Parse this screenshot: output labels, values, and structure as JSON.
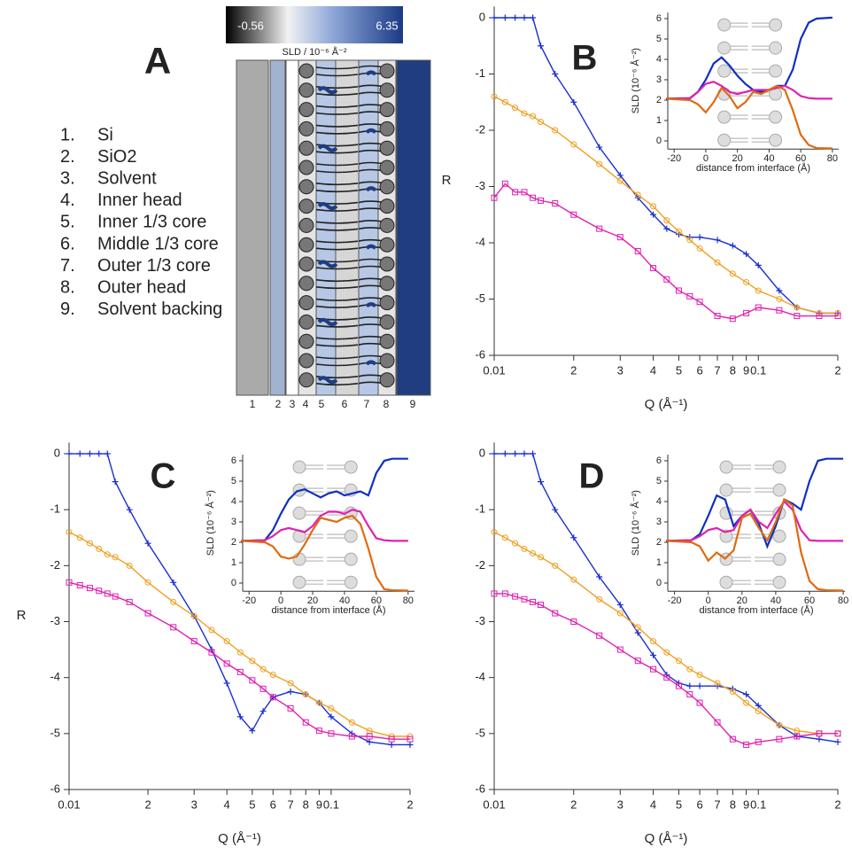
{
  "panel_a": {
    "label": "A",
    "items": [
      {
        "number": "1.",
        "text": "Si"
      },
      {
        "number": "2.",
        "text": "SiO2"
      },
      {
        "number": "3.",
        "text": "Solvent"
      },
      {
        "number": "4.",
        "text": "Inner head"
      },
      {
        "number": "5.",
        "text": "Inner 1/3 core"
      },
      {
        "number": "6.",
        "text": "Middle 1/3 core"
      },
      {
        "number": "7.",
        "text": "Outer 1/3 core"
      },
      {
        "number": "8.",
        "text": "Outer head"
      },
      {
        "number": "9.",
        "text": "Solvent backing"
      }
    ],
    "colorbar": {
      "min": -0.56,
      "max": 6.35,
      "label": "SLD / 10⁻⁶ Å⁻²"
    },
    "layer_numbers": [
      1,
      2,
      3,
      4,
      5,
      6,
      7,
      8,
      9
    ]
  },
  "chart_data": [
    {
      "type": "line",
      "label": "B",
      "xscale": "log",
      "xlabel": "Q (Å⁻¹)",
      "ylabel": "R",
      "xlim": [
        0.01,
        0.2
      ],
      "ylim": [
        -6,
        0.2
      ],
      "xticks": [
        {
          "value": 0.01,
          "label": "0.01"
        },
        {
          "value": 0.02,
          "label": "2"
        },
        {
          "value": 0.03,
          "label": "3"
        },
        {
          "value": 0.04,
          "label": "4"
        },
        {
          "value": 0.05,
          "label": "5"
        },
        {
          "value": 0.06,
          "label": "6"
        },
        {
          "value": 0.07,
          "label": "7"
        },
        {
          "value": 0.08,
          "label": "8"
        },
        {
          "value": 0.09,
          "label": "9"
        },
        0.1,
        {
          "value": 0.2,
          "label": "2"
        }
      ],
      "yticks": [
        -6,
        -5,
        -4,
        -3,
        -2,
        -1,
        0
      ],
      "x": [
        0.01,
        0.011,
        0.012,
        0.013,
        0.014,
        0.015,
        0.017,
        0.02,
        0.025,
        0.03,
        0.035,
        0.04,
        0.045,
        0.05,
        0.055,
        0.06,
        0.07,
        0.08,
        0.09,
        0.1,
        0.12,
        0.14,
        0.17,
        0.2
      ],
      "series": [
        {
          "color": "#1a2fd0",
          "marker": "plus",
          "values": [
            0,
            0,
            0,
            0,
            0,
            -0.5,
            -1.0,
            -1.5,
            -2.3,
            -2.8,
            -3.2,
            -3.5,
            -3.75,
            -3.85,
            -3.9,
            -3.9,
            -3.95,
            -4.05,
            -4.2,
            -4.4,
            -4.85,
            -5.15,
            -5.25,
            -5.25
          ]
        },
        {
          "color": "#f0a020",
          "marker": "circle",
          "values": [
            -1.4,
            -1.5,
            -1.6,
            -1.7,
            -1.75,
            -1.85,
            -2.0,
            -2.25,
            -2.6,
            -2.9,
            -3.15,
            -3.35,
            -3.6,
            -3.8,
            -3.95,
            -4.1,
            -4.35,
            -4.55,
            -4.7,
            -4.85,
            -5.0,
            -5.15,
            -5.25,
            -5.25
          ]
        },
        {
          "color": "#e020b0",
          "marker": "square",
          "values": [
            -3.2,
            -2.95,
            -3.1,
            -3.1,
            -3.2,
            -3.25,
            -3.3,
            -3.5,
            -3.75,
            -3.9,
            -4.15,
            -4.45,
            -4.65,
            -4.85,
            -4.95,
            -5.05,
            -5.3,
            -5.35,
            -5.25,
            -5.15,
            -5.2,
            -5.3,
            -5.3,
            -5.3
          ]
        }
      ]
    },
    {
      "type": "line",
      "xlabel": "distance from interface (Å)",
      "ylabel": "SLD (10⁻⁶ Å⁻²)",
      "xlim": [
        -24,
        84
      ],
      "ylim": [
        -0.4,
        6.3
      ],
      "xticks": [
        -20,
        0,
        20,
        40,
        60,
        80
      ],
      "yticks": [
        0,
        1,
        2,
        3,
        4,
        5,
        6
      ],
      "x": [
        -25,
        -10,
        -5,
        0,
        5,
        10,
        15,
        20,
        25,
        30,
        35,
        40,
        45,
        50,
        55,
        60,
        65,
        70,
        80
      ],
      "series": [
        {
          "color": "#1030c0",
          "values": [
            2.07,
            2.1,
            2.4,
            3.0,
            3.8,
            4.1,
            3.7,
            3.2,
            2.8,
            2.5,
            2.4,
            2.5,
            2.7,
            2.7,
            3.5,
            5.0,
            5.8,
            6.0,
            6.05
          ]
        },
        {
          "color": "#e020b0",
          "values": [
            2.07,
            2.08,
            2.4,
            2.8,
            2.9,
            2.7,
            2.4,
            2.3,
            2.4,
            2.5,
            2.5,
            2.5,
            2.6,
            2.7,
            2.5,
            2.2,
            2.1,
            2.07,
            2.07
          ]
        },
        {
          "color": "#e06a10",
          "values": [
            2.07,
            2.0,
            1.8,
            1.4,
            1.9,
            2.6,
            2.2,
            1.6,
            1.9,
            2.4,
            2.3,
            2.5,
            2.7,
            2.5,
            1.5,
            0.3,
            -0.2,
            -0.35,
            -0.37
          ]
        }
      ]
    },
    {
      "type": "line",
      "label": "C",
      "xscale": "log",
      "xlabel": "Q (Å⁻¹)",
      "ylabel": "R",
      "xlim": [
        0.01,
        0.2
      ],
      "ylim": [
        -6,
        0.2
      ],
      "xticks": [
        {
          "value": 0.01,
          "label": "0.01"
        },
        {
          "value": 0.02,
          "label": "2"
        },
        {
          "value": 0.03,
          "label": "3"
        },
        {
          "value": 0.04,
          "label": "4"
        },
        {
          "value": 0.05,
          "label": "5"
        },
        {
          "value": 0.06,
          "label": "6"
        },
        {
          "value": 0.07,
          "label": "7"
        },
        {
          "value": 0.08,
          "label": "8"
        },
        {
          "value": 0.09,
          "label": "9"
        },
        0.1,
        {
          "value": 0.2,
          "label": "2"
        }
      ],
      "yticks": [
        -6,
        -5,
        -4,
        -3,
        -2,
        -1,
        0
      ],
      "x": [
        0.01,
        0.011,
        0.012,
        0.013,
        0.014,
        0.015,
        0.017,
        0.02,
        0.025,
        0.03,
        0.035,
        0.04,
        0.045,
        0.05,
        0.055,
        0.06,
        0.07,
        0.08,
        0.09,
        0.1,
        0.12,
        0.14,
        0.17,
        0.2
      ],
      "series": [
        {
          "color": "#1a2fd0",
          "marker": "plus",
          "values": [
            0,
            0,
            0,
            0,
            0,
            -0.5,
            -1.0,
            -1.6,
            -2.3,
            -2.9,
            -3.5,
            -4.1,
            -4.7,
            -4.95,
            -4.6,
            -4.35,
            -4.25,
            -4.3,
            -4.45,
            -4.7,
            -5.0,
            -5.15,
            -5.2,
            -5.2
          ]
        },
        {
          "color": "#f0a020",
          "marker": "circle",
          "values": [
            -1.4,
            -1.5,
            -1.6,
            -1.7,
            -1.8,
            -1.85,
            -2.0,
            -2.3,
            -2.65,
            -2.9,
            -3.15,
            -3.35,
            -3.55,
            -3.7,
            -3.85,
            -3.95,
            -4.1,
            -4.3,
            -4.45,
            -4.55,
            -4.8,
            -4.95,
            -5.05,
            -5.05
          ]
        },
        {
          "color": "#e020b0",
          "marker": "square",
          "values": [
            -2.3,
            -2.35,
            -2.4,
            -2.45,
            -2.5,
            -2.55,
            -2.65,
            -2.85,
            -3.1,
            -3.35,
            -3.55,
            -3.75,
            -3.9,
            -4.05,
            -4.2,
            -4.35,
            -4.55,
            -4.8,
            -4.95,
            -5.0,
            -5.05,
            -5.05,
            -5.1,
            -5.1
          ]
        }
      ]
    },
    {
      "type": "line",
      "xlabel": "distance from interface (Å)",
      "ylabel": "SLD (10⁻⁶ Å⁻²)",
      "xlim": [
        -24,
        84
      ],
      "ylim": [
        -0.4,
        6.3
      ],
      "xticks": [
        -20,
        0,
        20,
        40,
        60,
        80
      ],
      "yticks": [
        0,
        1,
        2,
        3,
        4,
        5,
        6
      ],
      "x": [
        -25,
        -10,
        -5,
        0,
        5,
        10,
        15,
        20,
        25,
        30,
        35,
        40,
        45,
        50,
        55,
        60,
        65,
        70,
        80
      ],
      "series": [
        {
          "color": "#1030c0",
          "values": [
            2.07,
            2.1,
            2.6,
            3.4,
            4.1,
            4.5,
            4.6,
            4.4,
            4.2,
            4.4,
            4.5,
            4.3,
            4.4,
            4.5,
            4.3,
            5.4,
            6.0,
            6.1,
            6.1
          ]
        },
        {
          "color": "#e020b0",
          "values": [
            2.07,
            2.1,
            2.3,
            2.6,
            2.7,
            2.6,
            2.5,
            2.8,
            3.3,
            3.5,
            3.5,
            3.4,
            3.6,
            3.5,
            2.8,
            2.2,
            2.1,
            2.07,
            2.07
          ]
        },
        {
          "color": "#e06a10",
          "values": [
            2.07,
            2.0,
            1.8,
            1.3,
            1.2,
            1.3,
            1.9,
            2.6,
            3.2,
            3.1,
            3.0,
            3.2,
            3.3,
            2.9,
            1.7,
            0.3,
            -0.3,
            -0.35,
            -0.37
          ]
        }
      ]
    },
    {
      "type": "line",
      "label": "D",
      "xscale": "log",
      "xlabel": "Q (Å⁻¹)",
      "xlim": [
        0.01,
        0.2
      ],
      "ylim": [
        -6,
        0.2
      ],
      "xticks": [
        {
          "value": 0.01,
          "label": "0.01"
        },
        {
          "value": 0.02,
          "label": "2"
        },
        {
          "value": 0.03,
          "label": "3"
        },
        {
          "value": 0.04,
          "label": "4"
        },
        {
          "value": 0.05,
          "label": "5"
        },
        {
          "value": 0.06,
          "label": "6"
        },
        {
          "value": 0.07,
          "label": "7"
        },
        {
          "value": 0.08,
          "label": "8"
        },
        {
          "value": 0.09,
          "label": "9"
        },
        0.1,
        {
          "value": 0.2,
          "label": "2"
        }
      ],
      "yticks": [
        -6,
        -5,
        -4,
        -3,
        -2,
        -1,
        0
      ],
      "x": [
        0.01,
        0.011,
        0.012,
        0.013,
        0.014,
        0.015,
        0.017,
        0.02,
        0.025,
        0.03,
        0.035,
        0.04,
        0.045,
        0.05,
        0.055,
        0.06,
        0.07,
        0.08,
        0.09,
        0.1,
        0.12,
        0.14,
        0.17,
        0.2
      ],
      "series": [
        {
          "color": "#1a2fd0",
          "marker": "plus",
          "values": [
            0,
            0,
            0,
            0,
            0,
            -0.5,
            -1.0,
            -1.5,
            -2.2,
            -2.7,
            -3.2,
            -3.6,
            -3.95,
            -4.1,
            -4.15,
            -4.15,
            -4.15,
            -4.2,
            -4.3,
            -4.5,
            -4.85,
            -5.05,
            -5.1,
            -5.15
          ]
        },
        {
          "color": "#f0a020",
          "marker": "circle",
          "values": [
            -1.4,
            -1.5,
            -1.6,
            -1.7,
            -1.78,
            -1.85,
            -2.0,
            -2.25,
            -2.6,
            -2.85,
            -3.1,
            -3.35,
            -3.55,
            -3.7,
            -3.85,
            -3.95,
            -4.1,
            -4.25,
            -4.45,
            -4.6,
            -4.85,
            -4.95,
            -5.0,
            -5.0
          ]
        },
        {
          "color": "#e020b0",
          "marker": "square",
          "values": [
            -2.5,
            -2.5,
            -2.55,
            -2.6,
            -2.65,
            -2.7,
            -2.85,
            -3.0,
            -3.25,
            -3.5,
            -3.7,
            -3.85,
            -4.0,
            -4.15,
            -4.3,
            -4.45,
            -4.8,
            -5.1,
            -5.2,
            -5.15,
            -5.1,
            -5.05,
            -5.0,
            -5.0
          ]
        }
      ]
    },
    {
      "type": "line",
      "xlabel": "distance from interface (Å)",
      "ylabel": "SLD (10⁻⁶ Å⁻²)",
      "xlim": [
        -24,
        81
      ],
      "ylim": [
        -0.4,
        6.3
      ],
      "xticks": [
        -20,
        0,
        20,
        40,
        60,
        80
      ],
      "yticks": [
        0,
        1,
        2,
        3,
        4,
        5,
        6
      ],
      "x": [
        -25,
        -10,
        -5,
        0,
        5,
        10,
        15,
        20,
        25,
        30,
        35,
        40,
        45,
        50,
        55,
        60,
        65,
        70,
        80
      ],
      "series": [
        {
          "color": "#1030c0",
          "values": [
            2.07,
            2.1,
            2.4,
            3.3,
            4.3,
            4.1,
            2.8,
            3.3,
            3.6,
            2.9,
            1.8,
            2.8,
            4.1,
            3.9,
            3.6,
            5.0,
            6.0,
            6.1,
            6.1
          ]
        },
        {
          "color": "#e020b0",
          "values": [
            2.07,
            2.1,
            2.3,
            2.6,
            2.7,
            2.5,
            2.6,
            3.3,
            3.6,
            3.0,
            2.7,
            3.4,
            4.0,
            3.6,
            2.6,
            2.1,
            2.07,
            2.07,
            2.07
          ]
        },
        {
          "color": "#e06a10",
          "values": [
            2.07,
            2.0,
            1.8,
            1.1,
            1.5,
            1.2,
            1.6,
            3.2,
            3.4,
            2.7,
            2.1,
            3.0,
            4.1,
            3.8,
            1.5,
            0.1,
            -0.3,
            -0.35,
            -0.37
          ]
        }
      ]
    }
  ]
}
